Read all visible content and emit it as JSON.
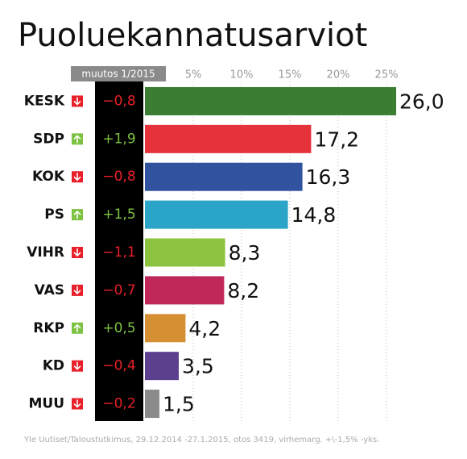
{
  "chart_data": {
    "type": "bar",
    "orientation": "horizontal",
    "title": "Puoluekannatusarviot",
    "change_header": "muutos 1/2015",
    "categories": [
      "KESK",
      "SDP",
      "KOK",
      "PS",
      "VIHR",
      "VAS",
      "RKP",
      "KD",
      "MUU"
    ],
    "values": [
      26.0,
      17.2,
      16.3,
      14.8,
      8.3,
      8.2,
      4.2,
      3.5,
      1.5
    ],
    "value_labels": [
      "26,0",
      "17,2",
      "16,3",
      "14,8",
      "8,3",
      "8,2",
      "4,2",
      "3,5",
      "1,5"
    ],
    "colors": [
      "#3b7d33",
      "#e5323b",
      "#30529f",
      "#2aa5c7",
      "#8cc43f",
      "#c0285a",
      "#d68f33",
      "#5c3f8e",
      "#8a8a8a"
    ],
    "changes": [
      -0.8,
      1.9,
      -0.8,
      1.5,
      -1.1,
      -0.7,
      0.5,
      -0.4,
      -0.2
    ],
    "change_labels": [
      "−0,8",
      "+1,9",
      "−0,8",
      "+1,5",
      "−1,1",
      "−0,7",
      "+0,5",
      "−0,4",
      "−0,2"
    ],
    "up_color": "#7dc242",
    "down_color": "#e8202a",
    "xlim": [
      0,
      27
    ],
    "xticks": [
      {
        "value": 5,
        "label": "5%"
      },
      {
        "value": 10,
        "label": "10%"
      },
      {
        "value": 15,
        "label": "15%"
      },
      {
        "value": 20,
        "label": "20%"
      },
      {
        "value": 25,
        "label": "25%"
      }
    ],
    "grid": true,
    "source": "Yle Uutiset/Taloustutkimus, 29.12.2014 -27.1.2015, otos 3419, virhemarg. +\\-1,5% -yks."
  }
}
